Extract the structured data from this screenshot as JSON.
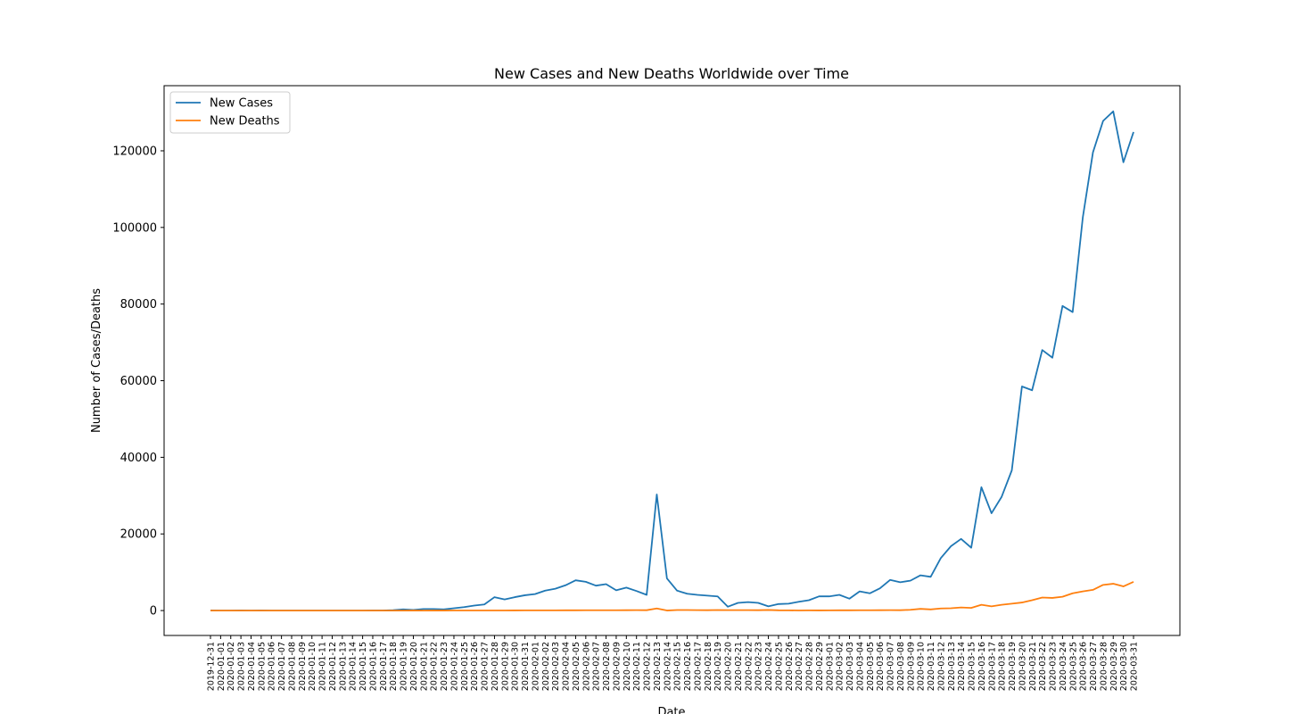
{
  "chart_data": {
    "type": "line",
    "title": "New Cases and New Deaths Worldwide over Time",
    "xlabel": "Date",
    "ylabel": "Number of Cases/Deaths",
    "categories": [
      "2019-12-31",
      "2020-01-01",
      "2020-01-02",
      "2020-01-03",
      "2020-01-04",
      "2020-01-05",
      "2020-01-06",
      "2020-01-07",
      "2020-01-08",
      "2020-01-09",
      "2020-01-10",
      "2020-01-11",
      "2020-01-12",
      "2020-01-13",
      "2020-01-14",
      "2020-01-15",
      "2020-01-16",
      "2020-01-17",
      "2020-01-18",
      "2020-01-19",
      "2020-01-20",
      "2020-01-21",
      "2020-01-22",
      "2020-01-23",
      "2020-01-24",
      "2020-01-25",
      "2020-01-26",
      "2020-01-27",
      "2020-01-28",
      "2020-01-29",
      "2020-01-30",
      "2020-01-31",
      "2020-02-01",
      "2020-02-02",
      "2020-02-03",
      "2020-02-04",
      "2020-02-05",
      "2020-02-06",
      "2020-02-07",
      "2020-02-08",
      "2020-02-09",
      "2020-02-10",
      "2020-02-11",
      "2020-02-12",
      "2020-02-13",
      "2020-02-14",
      "2020-02-15",
      "2020-02-16",
      "2020-02-17",
      "2020-02-18",
      "2020-02-19",
      "2020-02-20",
      "2020-02-21",
      "2020-02-22",
      "2020-02-23",
      "2020-02-24",
      "2020-02-25",
      "2020-02-26",
      "2020-02-27",
      "2020-02-28",
      "2020-02-29",
      "2020-03-01",
      "2020-03-02",
      "2020-03-03",
      "2020-03-04",
      "2020-03-05",
      "2020-03-06",
      "2020-03-07",
      "2020-03-08",
      "2020-03-09",
      "2020-03-10",
      "2020-03-11",
      "2020-03-12",
      "2020-03-13",
      "2020-03-14",
      "2020-03-15",
      "2020-03-16",
      "2020-03-17",
      "2020-03-18",
      "2020-03-19",
      "2020-03-20",
      "2020-03-21",
      "2020-03-22",
      "2020-03-23",
      "2020-03-24",
      "2020-03-25",
      "2020-03-26",
      "2020-03-27",
      "2020-03-28",
      "2020-03-29",
      "2020-03-30",
      "2020-03-31"
    ],
    "series": [
      {
        "name": "New Cases",
        "color": "#1f77b4",
        "values": [
          27,
          0,
          0,
          17,
          0,
          15,
          0,
          0,
          0,
          0,
          0,
          0,
          0,
          1,
          0,
          0,
          4,
          17,
          100,
          300,
          150,
          400,
          400,
          300,
          600,
          900,
          1300,
          1600,
          3500,
          2900,
          3500,
          4000,
          4300,
          5200,
          5700,
          6600,
          7900,
          7500,
          6500,
          6900,
          5300,
          6000,
          5100,
          4100,
          30300,
          8400,
          5200,
          4400,
          4100,
          3900,
          3700,
          1000,
          2000,
          2200,
          2000,
          1100,
          1700,
          1800,
          2300,
          2700,
          3700,
          3700,
          4100,
          3100,
          5000,
          4500,
          5800,
          8000,
          7400,
          7800,
          9200,
          8800,
          13700,
          16800,
          18700,
          16400,
          32200,
          25400,
          29700,
          36600,
          58500,
          57500,
          68000,
          66000,
          79500,
          77900,
          102600,
          119600,
          127800,
          130300,
          117000,
          124900
        ]
      },
      {
        "name": "New Deaths",
        "color": "#ff7f0e",
        "values": [
          0,
          0,
          0,
          0,
          0,
          0,
          0,
          0,
          0,
          0,
          0,
          1,
          0,
          0,
          0,
          0,
          0,
          0,
          0,
          1,
          3,
          0,
          9,
          8,
          16,
          15,
          24,
          25,
          26,
          26,
          38,
          43,
          46,
          45,
          57,
          64,
          66,
          73,
          73,
          86,
          89,
          97,
          108,
          97,
          550,
          10,
          143,
          142,
          106,
          98,
          136,
          115,
          118,
          109,
          97,
          150,
          71,
          52,
          29,
          44,
          37,
          58,
          67,
          72,
          84,
          80,
          99,
          105,
          100,
          200,
          450,
          300,
          550,
          600,
          800,
          700,
          1500,
          1100,
          1500,
          1800,
          2100,
          2700,
          3400,
          3300,
          3600,
          4500,
          5000,
          5400,
          6700,
          7000,
          6300,
          7500
        ]
      }
    ],
    "ylim": [
      -6500,
      137000
    ],
    "yticks": [
      0,
      20000,
      40000,
      60000,
      80000,
      100000,
      120000
    ],
    "legend": "upper left"
  }
}
